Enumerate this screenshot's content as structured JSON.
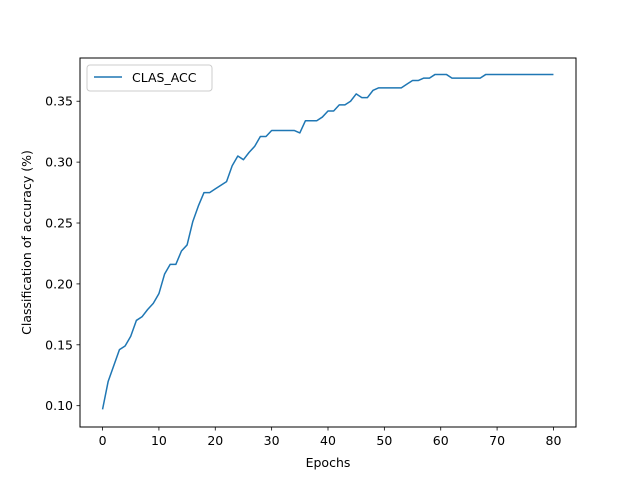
{
  "chart_data": {
    "type": "line",
    "title": "",
    "xlabel": "Epochs",
    "ylabel": "Classification of accuracy (%)",
    "xlim": [
      -4,
      84
    ],
    "ylim": [
      0.0825,
      0.3855
    ],
    "xticks": [
      0,
      10,
      20,
      30,
      40,
      50,
      60,
      70,
      80
    ],
    "yticks": [
      0.1,
      0.15,
      0.2,
      0.25,
      0.3,
      0.35
    ],
    "ytick_labels": [
      "0.10",
      "0.15",
      "0.20",
      "0.25",
      "0.30",
      "0.35"
    ],
    "grid": false,
    "legend_placement": "upper-left",
    "series": [
      {
        "name": "CLAS_ACC",
        "color": "#1f77b4",
        "x": [
          0,
          1,
          2,
          3,
          4,
          5,
          6,
          7,
          8,
          9,
          10,
          11,
          12,
          13,
          14,
          15,
          16,
          17,
          18,
          19,
          20,
          21,
          22,
          23,
          24,
          25,
          26,
          27,
          28,
          29,
          30,
          31,
          32,
          33,
          34,
          35,
          36,
          37,
          38,
          39,
          40,
          41,
          42,
          43,
          44,
          45,
          46,
          47,
          48,
          49,
          50,
          51,
          52,
          53,
          54,
          55,
          56,
          57,
          58,
          59,
          60,
          61,
          62,
          63,
          64,
          65,
          66,
          67,
          68,
          69,
          70,
          71,
          72,
          73,
          74,
          75,
          76,
          77,
          78,
          79,
          80
        ],
        "values": [
          0.097,
          0.12,
          0.133,
          0.146,
          0.149,
          0.157,
          0.17,
          0.173,
          0.179,
          0.184,
          0.192,
          0.208,
          0.216,
          0.216,
          0.227,
          0.232,
          0.251,
          0.264,
          0.275,
          0.275,
          0.278,
          0.281,
          0.284,
          0.297,
          0.305,
          0.302,
          0.308,
          0.313,
          0.321,
          0.321,
          0.326,
          0.326,
          0.326,
          0.326,
          0.326,
          0.324,
          0.334,
          0.334,
          0.334,
          0.337,
          0.342,
          0.342,
          0.347,
          0.347,
          0.35,
          0.356,
          0.353,
          0.353,
          0.359,
          0.361,
          0.361,
          0.361,
          0.361,
          0.361,
          0.364,
          0.367,
          0.367,
          0.369,
          0.369,
          0.372,
          0.372,
          0.372,
          0.369,
          0.369,
          0.369,
          0.369,
          0.369,
          0.369,
          0.372,
          0.372,
          0.372,
          0.372,
          0.372,
          0.372,
          0.372,
          0.372,
          0.372,
          0.372,
          0.372,
          0.372,
          0.372
        ]
      }
    ]
  }
}
